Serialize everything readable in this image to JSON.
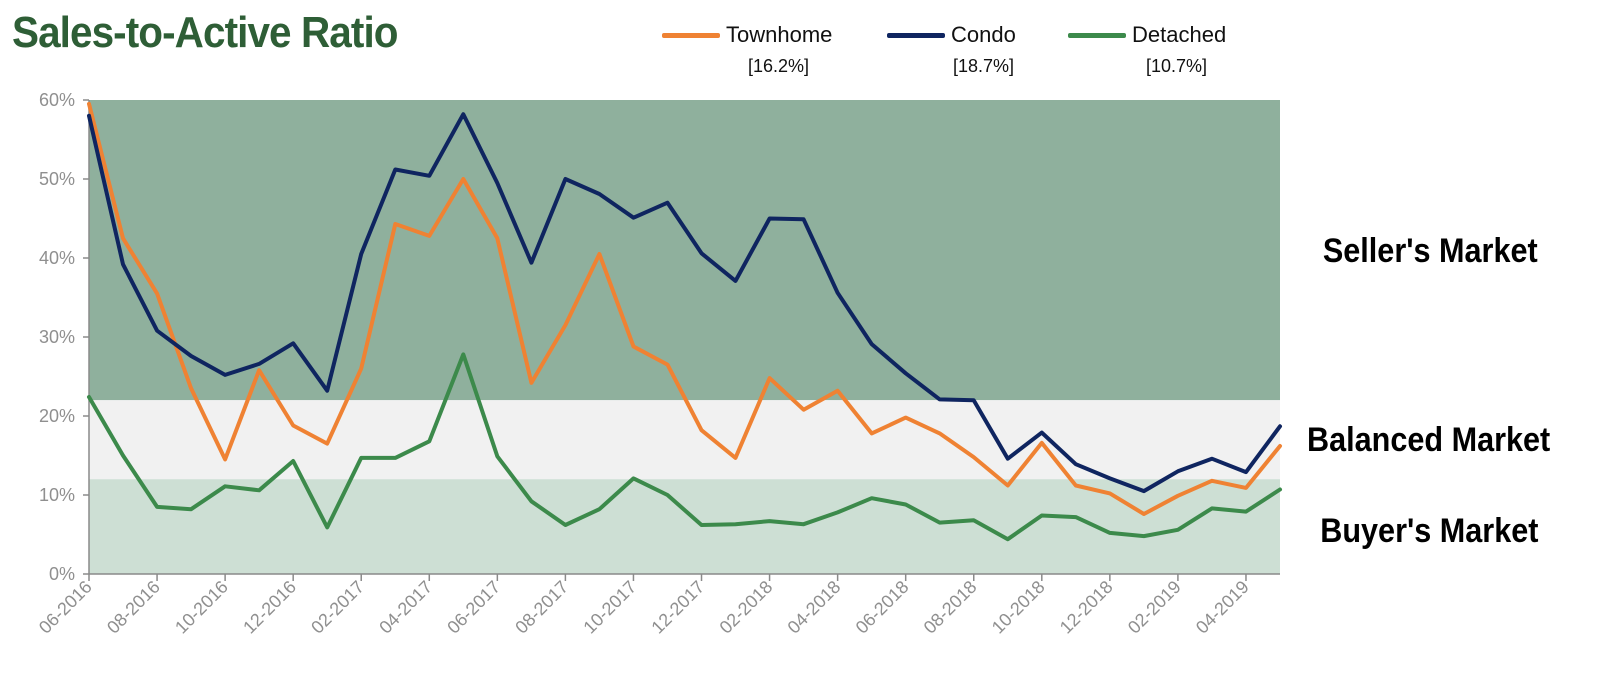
{
  "chart_data": {
    "type": "line",
    "title": "Sales-to-Active Ratio",
    "x": [
      "06-2016",
      "07-2016",
      "08-2016",
      "09-2016",
      "10-2016",
      "11-2016",
      "12-2016",
      "01-2017",
      "02-2017",
      "03-2017",
      "04-2017",
      "05-2017",
      "06-2017",
      "07-2017",
      "08-2017",
      "09-2017",
      "10-2017",
      "11-2017",
      "12-2017",
      "01-2018",
      "02-2018",
      "03-2018",
      "04-2018",
      "05-2018",
      "06-2018",
      "07-2018",
      "08-2018",
      "09-2018",
      "10-2018",
      "11-2018",
      "12-2018",
      "01-2019",
      "02-2019",
      "03-2019",
      "04-2019",
      "05-2019"
    ],
    "x_tick_labels": [
      "06-2016",
      "08-2016",
      "10-2016",
      "12-2016",
      "02-2017",
      "04-2017",
      "06-2017",
      "08-2017",
      "10-2017",
      "12-2017",
      "02-2018",
      "04-2018",
      "06-2018",
      "08-2018",
      "10-2018",
      "12-2018",
      "02-2019",
      "04-2019"
    ],
    "y_tick_labels": [
      "0%",
      "10%",
      "20%",
      "30%",
      "40%",
      "50%",
      "60%"
    ],
    "ylim": [
      0,
      60
    ],
    "y_unit": "%",
    "grid": false,
    "legend_position": "top",
    "series": [
      {
        "name": "Townhome",
        "legend_value": "[16.2%]",
        "color": "#ef8233",
        "values": [
          59.5,
          42.5,
          35.5,
          23.5,
          14.5,
          25.8,
          18.8,
          16.5,
          26,
          44.3,
          42.8,
          50,
          42.5,
          24.2,
          31.5,
          40.5,
          28.8,
          26.5,
          18.2,
          14.7,
          24.8,
          20.8,
          23.2,
          17.8,
          19.8,
          17.8,
          14.8,
          11.2,
          16.6,
          11.2,
          10.2,
          7.6,
          9.9,
          11.8,
          10.9,
          16.2
        ]
      },
      {
        "name": "Condo",
        "legend_value": "[18.7%]",
        "color": "#0f2560",
        "values": [
          58,
          39.2,
          30.8,
          27.6,
          25.2,
          26.6,
          29.2,
          23.2,
          40.5,
          51.2,
          50.4,
          58.2,
          49.5,
          39.4,
          50,
          48.1,
          45.1,
          47,
          40.6,
          37.1,
          45,
          44.9,
          35.6,
          29.1,
          25.4,
          22.1,
          22,
          14.6,
          17.9,
          13.9,
          12.1,
          10.5,
          13,
          14.6,
          12.9,
          18.7
        ]
      },
      {
        "name": "Detached",
        "legend_value": "[10.7%]",
        "color": "#3c8a4b",
        "values": [
          22.4,
          15,
          8.5,
          8.2,
          11.1,
          10.6,
          14.3,
          5.9,
          14.7,
          14.7,
          16.8,
          27.8,
          14.9,
          9.2,
          6.2,
          8.2,
          12.1,
          10,
          6.2,
          6.3,
          6.7,
          6.3,
          7.8,
          9.6,
          8.8,
          6.5,
          6.8,
          4.4,
          7.4,
          7.2,
          5.2,
          4.8,
          5.6,
          8.3,
          7.9,
          10.7
        ]
      }
    ],
    "zones": [
      {
        "label": "Seller's Market",
        "from": 22,
        "to": 60,
        "color": "#8fb09d"
      },
      {
        "label": "Balanced Market",
        "from": 12,
        "to": 22,
        "color": "#f1f1f1"
      },
      {
        "label": "Buyer's Market",
        "from": 0,
        "to": 12,
        "color": "#cddfd4"
      }
    ],
    "axis_color": "#8a8a8a",
    "tick_label_color": "#8f8f8f",
    "title_color": "#2e5e36"
  }
}
